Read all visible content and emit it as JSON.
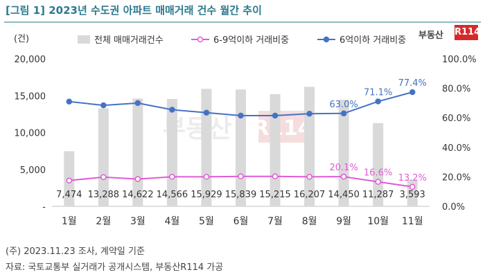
{
  "header": {
    "title": "[그림 1] 2023년 수도권 아파트 매매거래 건수 월간 추이"
  },
  "logo": {
    "text": "부동산",
    "box": "R114"
  },
  "footer": {
    "note": "(주) 2023.11.23 조사, 계약일 기준",
    "source": "자료: 국토교통부 실거래가 공개시스템, 부동산R114 가공"
  },
  "chart_data": {
    "type": "bar",
    "categories": [
      "1월",
      "2월",
      "3월",
      "4월",
      "5월",
      "6월",
      "7월",
      "8월",
      "9월",
      "10월",
      "11월"
    ],
    "left_axis": {
      "unit": "(건)",
      "ticks": [
        "-",
        "5,000",
        "10,000",
        "15,000",
        "20,000"
      ],
      "ylim": [
        0,
        20000
      ]
    },
    "right_axis": {
      "ticks": [
        "0.0%",
        "20.0%",
        "40.0%",
        "60.0%",
        "80.0%",
        "100.0%"
      ],
      "ylim": [
        0,
        100
      ]
    },
    "legend": {
      "position": "top"
    },
    "series": [
      {
        "name": "전체 매매거래건수",
        "kind": "bar",
        "axis": "left",
        "color": "#d9d9d9",
        "values": [
          7474,
          13288,
          14622,
          14566,
          15929,
          15839,
          15215,
          16207,
          14450,
          11287,
          3593
        ],
        "labels": [
          "7,474",
          "13,288",
          "14,622",
          "14,566",
          "15,929",
          "15,839",
          "15,215",
          "16,207",
          "14,450",
          "11,287",
          "3,593"
        ]
      },
      {
        "name": "6-9억이하 거래비중",
        "kind": "line",
        "axis": "right",
        "color": "#e15ad8",
        "marker": "#ffffff",
        "values": [
          17.5,
          19.8,
          18.5,
          20.0,
          20.0,
          20.3,
          20.3,
          20.0,
          20.1,
          16.6,
          13.2
        ],
        "point_labels": [
          null,
          null,
          null,
          null,
          null,
          null,
          null,
          null,
          "20.1%",
          "16.6%",
          "13.2%"
        ]
      },
      {
        "name": "6억이하 거래비중",
        "kind": "line",
        "axis": "right",
        "color": "#4472c4",
        "marker": "#4472c4",
        "values": [
          71.0,
          68.5,
          70.0,
          65.5,
          63.5,
          61.5,
          61.5,
          62.8,
          63.0,
          71.1,
          77.4
        ],
        "point_labels": [
          null,
          null,
          null,
          null,
          null,
          null,
          null,
          null,
          "63.0%",
          "71.1%",
          "77.4%"
        ]
      }
    ]
  }
}
